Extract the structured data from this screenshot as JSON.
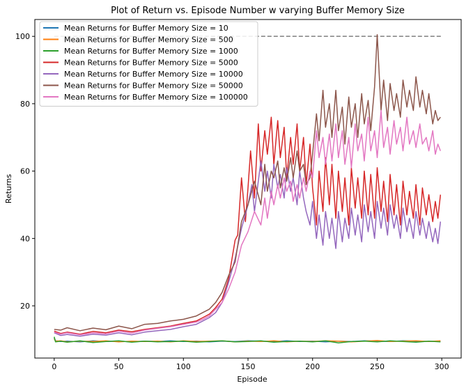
{
  "chart_data": {
    "type": "line",
    "title": "Plot of Return vs. Episode Number w varying Buffer Memory Size",
    "xlabel": "Episode",
    "ylabel": "Returns",
    "xlim": [
      -15,
      315
    ],
    "ylim": [
      4.5,
      105
    ],
    "xticks": [
      0,
      50,
      100,
      150,
      200,
      250,
      300
    ],
    "yticks": [
      20,
      40,
      60,
      80,
      100
    ],
    "grid": false,
    "legend_position": "upper-left",
    "reference_line": {
      "y": 100,
      "x": [
        0,
        300
      ],
      "color": "#7f7f7f",
      "style": "dashed"
    },
    "series": [
      {
        "name": "Mean Returns for  Buffer Memory Size = 10",
        "color": "#1f77b4",
        "x": [
          0,
          1,
          5,
          10,
          20,
          30,
          40,
          50,
          60,
          70,
          80,
          90,
          100,
          110,
          120,
          130,
          140,
          150,
          160,
          170,
          180,
          190,
          200,
          210,
          220,
          230,
          240,
          250,
          260,
          270,
          280,
          290,
          299
        ],
        "y": [
          10.5,
          9.6,
          9.4,
          9.5,
          9.3,
          9.6,
          9.4,
          9.5,
          9.3,
          9.5,
          9.4,
          9.6,
          9.4,
          9.5,
          9.3,
          9.5,
          9.4,
          9.6,
          9.5,
          9.4,
          9.6,
          9.4,
          9.5,
          9.3,
          9.5,
          9.4,
          9.6,
          9.5,
          9.4,
          9.6,
          9.5,
          9.4,
          9.5
        ]
      },
      {
        "name": "Mean Returns for  Buffer Memory Size = 500",
        "color": "#ff7f0e",
        "x": [
          0,
          1,
          5,
          10,
          20,
          30,
          40,
          50,
          60,
          70,
          80,
          90,
          100,
          110,
          120,
          130,
          140,
          150,
          160,
          170,
          180,
          190,
          200,
          210,
          220,
          230,
          240,
          250,
          260,
          270,
          280,
          290,
          299
        ],
        "y": [
          10.2,
          9.5,
          9.6,
          9.3,
          9.5,
          9.4,
          9.6,
          9.3,
          9.5,
          9.4,
          9.5,
          9.3,
          9.6,
          9.4,
          9.5,
          9.6,
          9.3,
          9.5,
          9.4,
          9.6,
          9.3,
          9.5,
          9.4,
          9.6,
          9.5,
          9.3,
          9.5,
          9.7,
          9.4,
          9.5,
          9.6,
          9.4,
          9.6
        ]
      },
      {
        "name": "Mean Returns for  Buffer Memory Size = 1000",
        "color": "#2ca02c",
        "x": [
          0,
          1,
          5,
          10,
          20,
          30,
          40,
          50,
          60,
          70,
          80,
          90,
          100,
          110,
          120,
          130,
          140,
          150,
          160,
          170,
          180,
          190,
          200,
          210,
          220,
          230,
          240,
          250,
          260,
          270,
          280,
          290,
          299
        ],
        "y": [
          10.8,
          9.3,
          9.5,
          9.2,
          9.6,
          9.1,
          9.4,
          9.6,
          9.2,
          9.5,
          9.3,
          9.4,
          9.5,
          9.2,
          9.4,
          9.6,
          9.3,
          9.4,
          9.6,
          9.2,
          9.4,
          9.5,
          9.3,
          9.6,
          9.0,
          9.4,
          9.5,
          9.3,
          9.6,
          9.4,
          9.2,
          9.5,
          9.3
        ]
      },
      {
        "name": "Mean Returns for  Buffer Memory Size = 5000",
        "color": "#d62728",
        "x": [
          0,
          5,
          10,
          20,
          30,
          40,
          50,
          60,
          70,
          80,
          90,
          100,
          110,
          115,
          120,
          125,
          130,
          135,
          140,
          142,
          145,
          148,
          150,
          152,
          155,
          158,
          160,
          163,
          165,
          168,
          170,
          173,
          175,
          178,
          180,
          183,
          185,
          188,
          190,
          193,
          195,
          198,
          200,
          203,
          205,
          208,
          210,
          213,
          215,
          218,
          220,
          223,
          225,
          228,
          230,
          233,
          235,
          238,
          240,
          243,
          245,
          248,
          250,
          253,
          255,
          258,
          260,
          263,
          265,
          268,
          270,
          273,
          275,
          278,
          280,
          283,
          285,
          288,
          290,
          293,
          295,
          297,
          299
        ],
        "y": [
          12.5,
          11.8,
          12.2,
          11.6,
          12.4,
          12.0,
          12.8,
          12.3,
          13.0,
          13.5,
          14.0,
          14.8,
          15.5,
          16.5,
          17.5,
          19.5,
          22.0,
          28.0,
          39.5,
          41.0,
          58.0,
          45.0,
          55.0,
          66.0,
          52.0,
          74.0,
          60.0,
          72.0,
          65.0,
          76.0,
          62.0,
          75.0,
          64.0,
          73.0,
          58.0,
          70.0,
          62.0,
          74.0,
          60.0,
          70.0,
          56.0,
          68.0,
          55.0,
          44.0,
          60.0,
          48.0,
          64.0,
          50.0,
          62.0,
          46.0,
          60.0,
          48.0,
          58.0,
          44.0,
          61.0,
          49.0,
          58.0,
          46.0,
          60.0,
          47.0,
          59.0,
          46.0,
          61.0,
          48.0,
          57.0,
          45.0,
          59.0,
          47.0,
          56.0,
          44.0,
          57.0,
          47.0,
          54.0,
          46.0,
          56.0,
          44.0,
          55.0,
          47.0,
          53.0,
          45.0,
          51.0,
          46.0,
          53.0
        ]
      },
      {
        "name": "Mean Returns for  Buffer Memory Size = 10000",
        "color": "#9467bd",
        "x": [
          0,
          5,
          10,
          20,
          30,
          40,
          50,
          60,
          70,
          80,
          90,
          100,
          110,
          115,
          120,
          125,
          130,
          135,
          140,
          145,
          150,
          153,
          155,
          158,
          160,
          163,
          165,
          168,
          170,
          173,
          175,
          178,
          180,
          183,
          185,
          188,
          190,
          193,
          195,
          198,
          200,
          203,
          205,
          208,
          210,
          213,
          215,
          218,
          220,
          223,
          225,
          228,
          230,
          233,
          235,
          238,
          240,
          243,
          245,
          248,
          250,
          253,
          255,
          258,
          260,
          263,
          265,
          268,
          270,
          273,
          275,
          278,
          280,
          283,
          285,
          288,
          290,
          293,
          295,
          297,
          299
        ],
        "y": [
          12.0,
          11.2,
          11.5,
          11.0,
          11.6,
          11.3,
          12.0,
          11.4,
          12.2,
          12.6,
          13.0,
          13.8,
          14.5,
          15.5,
          16.5,
          18.0,
          21.0,
          27.0,
          34.0,
          43.0,
          50.0,
          56.0,
          48.0,
          57.0,
          63.0,
          54.0,
          60.0,
          52.0,
          62.0,
          55.0,
          59.0,
          52.0,
          61.0,
          54.0,
          58.0,
          50.0,
          60.0,
          52.0,
          48.0,
          44.0,
          51.0,
          40.0,
          47.0,
          38.0,
          48.0,
          40.0,
          46.0,
          37.0,
          48.0,
          39.0,
          46.0,
          40.0,
          49.0,
          41.0,
          47.0,
          39.0,
          50.0,
          42.0,
          48.0,
          40.0,
          51.0,
          43.0,
          49.0,
          41.0,
          50.0,
          43.0,
          47.0,
          40.0,
          49.0,
          42.0,
          46.0,
          40.0,
          48.0,
          41.0,
          46.0,
          40.0,
          45.0,
          39.0,
          43.0,
          38.5,
          45.0
        ]
      },
      {
        "name": "Mean Returns for  Buffer Memory Size = 50000",
        "color": "#8c564b",
        "x": [
          0,
          5,
          10,
          20,
          30,
          40,
          50,
          60,
          70,
          80,
          90,
          100,
          110,
          115,
          120,
          125,
          130,
          135,
          140,
          145,
          150,
          155,
          160,
          163,
          165,
          168,
          170,
          173,
          175,
          178,
          180,
          183,
          185,
          188,
          190,
          193,
          195,
          198,
          200,
          203,
          205,
          208,
          210,
          213,
          215,
          218,
          220,
          223,
          225,
          228,
          230,
          233,
          235,
          238,
          240,
          243,
          245,
          248,
          250,
          253,
          255,
          258,
          260,
          263,
          265,
          268,
          270,
          273,
          275,
          278,
          280,
          283,
          285,
          288,
          290,
          293,
          295,
          297,
          299
        ],
        "y": [
          13.0,
          12.8,
          13.5,
          12.6,
          13.4,
          12.9,
          14.0,
          13.2,
          14.5,
          14.8,
          15.5,
          16.0,
          17.0,
          18.0,
          19.0,
          21.0,
          24.0,
          29.0,
          33.0,
          45.0,
          50.0,
          57.0,
          50.0,
          62.0,
          54.0,
          60.0,
          58.0,
          63.0,
          55.0,
          61.0,
          57.0,
          64.0,
          58.0,
          66.0,
          60.0,
          62.0,
          56.0,
          58.0,
          65.0,
          77.0,
          69.0,
          84.0,
          73.0,
          80.0,
          70.0,
          84.0,
          72.0,
          79.0,
          68.0,
          82.0,
          73.0,
          80.0,
          70.0,
          83.0,
          74.0,
          81.0,
          72.0,
          85.0,
          100.5,
          78.0,
          87.0,
          75.0,
          86.0,
          78.0,
          83.0,
          76.0,
          87.0,
          79.0,
          84.0,
          78.0,
          88.0,
          79.0,
          84.0,
          77.0,
          83.0,
          74.0,
          78.0,
          75.0,
          76.0
        ]
      },
      {
        "name": "Mean Returns for  Buffer Memory Size = 100000",
        "color": "#e377c2",
        "x": [
          0,
          5,
          10,
          20,
          30,
          40,
          50,
          60,
          70,
          80,
          90,
          100,
          110,
          115,
          120,
          125,
          130,
          135,
          140,
          145,
          150,
          155,
          160,
          163,
          165,
          168,
          170,
          173,
          175,
          178,
          180,
          183,
          185,
          188,
          190,
          193,
          195,
          198,
          200,
          203,
          205,
          208,
          210,
          213,
          215,
          218,
          220,
          223,
          225,
          228,
          230,
          233,
          235,
          238,
          240,
          243,
          245,
          248,
          250,
          253,
          255,
          258,
          260,
          263,
          265,
          268,
          270,
          273,
          275,
          278,
          280,
          283,
          285,
          288,
          290,
          293,
          295,
          297,
          299
        ],
        "y": [
          12.2,
          11.6,
          12.0,
          11.4,
          12.0,
          11.7,
          12.5,
          11.9,
          12.8,
          13.3,
          13.8,
          14.5,
          15.2,
          16.0,
          17.0,
          19.0,
          21.0,
          25.0,
          30.0,
          38.0,
          42.0,
          48.0,
          44.0,
          52.0,
          46.0,
          54.0,
          50.0,
          56.0,
          52.0,
          58.0,
          54.0,
          57.0,
          51.0,
          56.0,
          52.0,
          58.0,
          54.0,
          60.0,
          58.0,
          72.0,
          64.0,
          70.0,
          62.0,
          71.0,
          63.0,
          74.0,
          64.0,
          72.0,
          62.0,
          70.0,
          61.0,
          74.0,
          66.0,
          71.0,
          63.0,
          76.0,
          66.0,
          72.0,
          64.0,
          78.0,
          67.0,
          73.0,
          65.0,
          75.0,
          68.0,
          73.0,
          66.0,
          76.0,
          68.0,
          72.0,
          67.0,
          74.0,
          68.0,
          70.0,
          66.0,
          72.0,
          65.0,
          68.0,
          66.0
        ]
      }
    ]
  }
}
